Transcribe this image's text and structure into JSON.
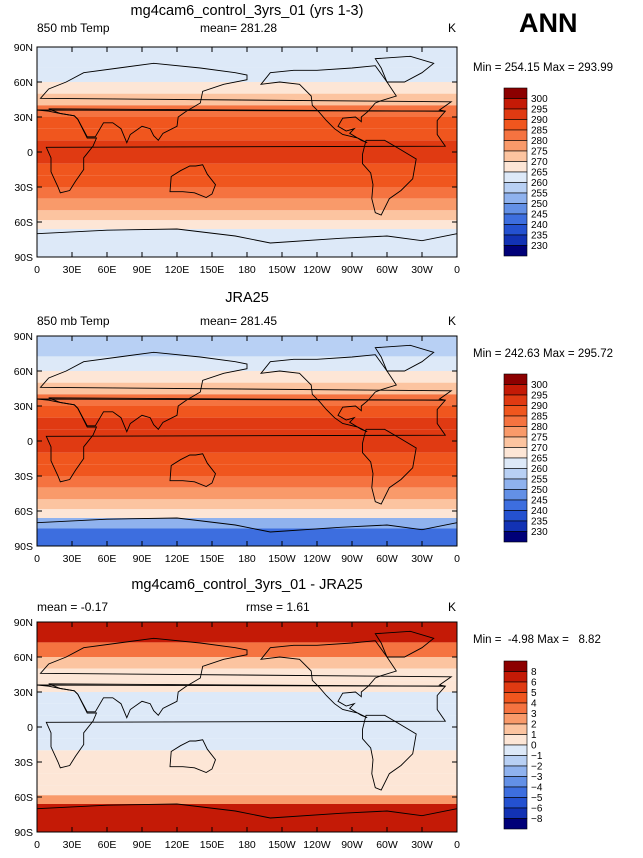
{
  "season_label": "ANN",
  "x_ticks": [
    "0",
    "30E",
    "60E",
    "90E",
    "120E",
    "150E",
    "180",
    "150W",
    "120W",
    "90W",
    "60W",
    "30W",
    "0"
  ],
  "y_ticks": [
    "90N",
    "60N",
    "30N",
    "0",
    "30S",
    "60S",
    "90S"
  ],
  "panels": [
    {
      "title": "mg4cam6_control_3yrs_01 (yrs 1-3)",
      "left_label": "850 mb Temp",
      "center_label": "mean= 281.28",
      "right_label": "K",
      "minmax": "Min = 254.15 Max = 293.99",
      "colorbar_labels": [
        "300",
        "295",
        "290",
        "285",
        "280",
        "275",
        "270",
        "265",
        "260",
        "255",
        "250",
        "245",
        "240",
        "235",
        "230"
      ],
      "colorbar_colors": [
        "#8c0000",
        "#c41a06",
        "#e03a12",
        "#f0561e",
        "#f57340",
        "#f99a6a",
        "#fcc4a0",
        "#fde6d6",
        "#dde9f8",
        "#b8d0f4",
        "#8fb2ee",
        "#6390e6",
        "#3d6edf",
        "#2451d0",
        "#1232b4",
        "#000078"
      ]
    },
    {
      "title": "JRA25",
      "left_label": "850 mb Temp",
      "center_label": "mean= 281.45",
      "right_label": "K",
      "minmax": "Min = 242.63 Max = 295.72",
      "colorbar_labels": [
        "300",
        "295",
        "290",
        "285",
        "280",
        "275",
        "270",
        "265",
        "260",
        "255",
        "250",
        "245",
        "240",
        "235",
        "230"
      ],
      "colorbar_colors": [
        "#8c0000",
        "#c41a06",
        "#e03a12",
        "#f0561e",
        "#f57340",
        "#f99a6a",
        "#fcc4a0",
        "#fde6d6",
        "#dde9f8",
        "#b8d0f4",
        "#8fb2ee",
        "#6390e6",
        "#3d6edf",
        "#2451d0",
        "#1232b4",
        "#000078"
      ]
    },
    {
      "title": "mg4cam6_control_3yrs_01 - JRA25",
      "left_label": "mean =  -0.17",
      "center_label": "rmse =    1.61",
      "right_label": "K",
      "minmax": "Min =  -4.98 Max =   8.82",
      "colorbar_labels": [
        "8",
        "6",
        "5",
        "4",
        "3",
        "2",
        "1",
        "0",
        "−1",
        "−2",
        "−3",
        "−4",
        "−5",
        "−6",
        "−8"
      ],
      "colorbar_colors": [
        "#8c0000",
        "#c41a06",
        "#e03a12",
        "#f0561e",
        "#f57340",
        "#f99a6a",
        "#fcc4a0",
        "#fde6d6",
        "#dde9f8",
        "#b8d0f4",
        "#8fb2ee",
        "#6390e6",
        "#3d6edf",
        "#2451d0",
        "#1232b4",
        "#000078"
      ]
    }
  ],
  "chart_data": [
    {
      "type": "heatmap",
      "title": "mg4cam6_control_3yrs_01 (yrs 1-3)",
      "variable": "850 mb Temp",
      "units": "K",
      "mean": 281.28,
      "min": 254.15,
      "max": 293.99,
      "levels": [
        230,
        235,
        240,
        245,
        250,
        255,
        260,
        265,
        270,
        275,
        280,
        285,
        290,
        295,
        300
      ],
      "xlim": [
        0,
        360
      ],
      "ylim": [
        -90,
        90
      ],
      "zonal_profile": {
        "lat": [
          80,
          65,
          55,
          45,
          35,
          25,
          15,
          5,
          -5,
          -15,
          -25,
          -35,
          -45,
          -55,
          -62,
          -70,
          -80
        ],
        "value": [
          263,
          264,
          268,
          274,
          282,
          287,
          289,
          290,
          290,
          289,
          286,
          281,
          276,
          271,
          266,
          263,
          262
        ]
      }
    },
    {
      "type": "heatmap",
      "title": "JRA25",
      "variable": "850 mb Temp",
      "units": "K",
      "mean": 281.45,
      "min": 242.63,
      "max": 295.72,
      "levels": [
        230,
        235,
        240,
        245,
        250,
        255,
        260,
        265,
        270,
        275,
        280,
        285,
        290,
        295,
        300
      ],
      "xlim": [
        0,
        360
      ],
      "ylim": [
        -90,
        90
      ],
      "zonal_profile": {
        "lat": [
          80,
          65,
          55,
          45,
          35,
          25,
          15,
          5,
          -5,
          -15,
          -25,
          -35,
          -45,
          -55,
          -62,
          -70,
          -80
        ],
        "value": [
          256,
          261,
          267,
          273,
          281,
          287,
          290,
          291,
          291,
          289,
          286,
          281,
          276,
          271,
          265,
          250,
          243
        ]
      }
    },
    {
      "type": "heatmap",
      "title": "mg4cam6_control_3yrs_01 - JRA25",
      "units": "K",
      "mean": -0.17,
      "rmse": 1.61,
      "min": -4.98,
      "max": 8.82,
      "levels": [
        -8,
        -6,
        -5,
        -4,
        -3,
        -2,
        -1,
        0,
        1,
        2,
        3,
        4,
        5,
        6,
        8
      ],
      "xlim": [
        0,
        360
      ],
      "ylim": [
        -90,
        90
      ],
      "zonal_profile": {
        "lat": [
          80,
          65,
          55,
          45,
          35,
          25,
          15,
          5,
          -5,
          -15,
          -25,
          -35,
          -45,
          -55,
          -62,
          -70,
          -80
        ],
        "value": [
          6,
          3,
          1,
          0.5,
          0,
          -1,
          -0.5,
          -0.5,
          -0.5,
          -0.5,
          0,
          0,
          0,
          0.5,
          2,
          6,
          6
        ]
      }
    }
  ]
}
